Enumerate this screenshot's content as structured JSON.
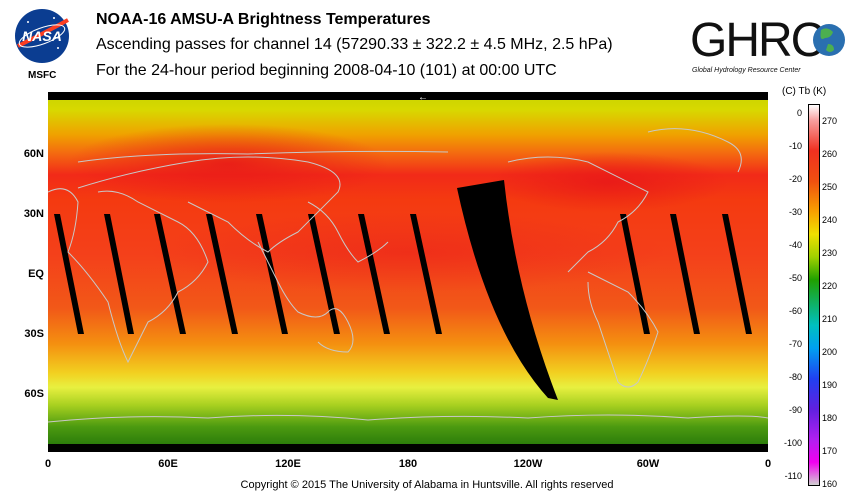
{
  "title_line1": "NOAA-16 AMSU-A Brightness Temperatures",
  "title_line2": "Ascending passes for channel 14 (57290.33 ± 322.2 ± 4.5 MHz, 2.5 hPa)",
  "title_line3": "For the 24-hour period beginning 2008-04-10 (101) at 00:00 UTC",
  "logo_left_text": "NASA",
  "logo_left_sub": "MSFC",
  "logo_right_text": "GHRC",
  "logo_right_sub": "Global Hydrology Resource Center",
  "lat_labels": [
    "60N",
    "30N",
    "EQ",
    "30S",
    "60S"
  ],
  "lon_labels": [
    "0",
    "60E",
    "120E",
    "180",
    "120W",
    "60W",
    "0"
  ],
  "colorbar": {
    "header": "(C)  Tb  (K)",
    "celsius": [
      "0",
      "-10",
      "-20",
      "-30",
      "-40",
      "-50",
      "-60",
      "-70",
      "-80",
      "-90",
      "-100",
      "-110"
    ],
    "kelvin": [
      "270",
      "260",
      "250",
      "240",
      "230",
      "220",
      "210",
      "200",
      "190",
      "180",
      "170",
      "160"
    ]
  },
  "copyright": "Copyright © 2015 The University of Alabama in Huntsville.  All rights reserved",
  "colors": {
    "gap": "#000000",
    "coast": "#c8c8c8"
  }
}
